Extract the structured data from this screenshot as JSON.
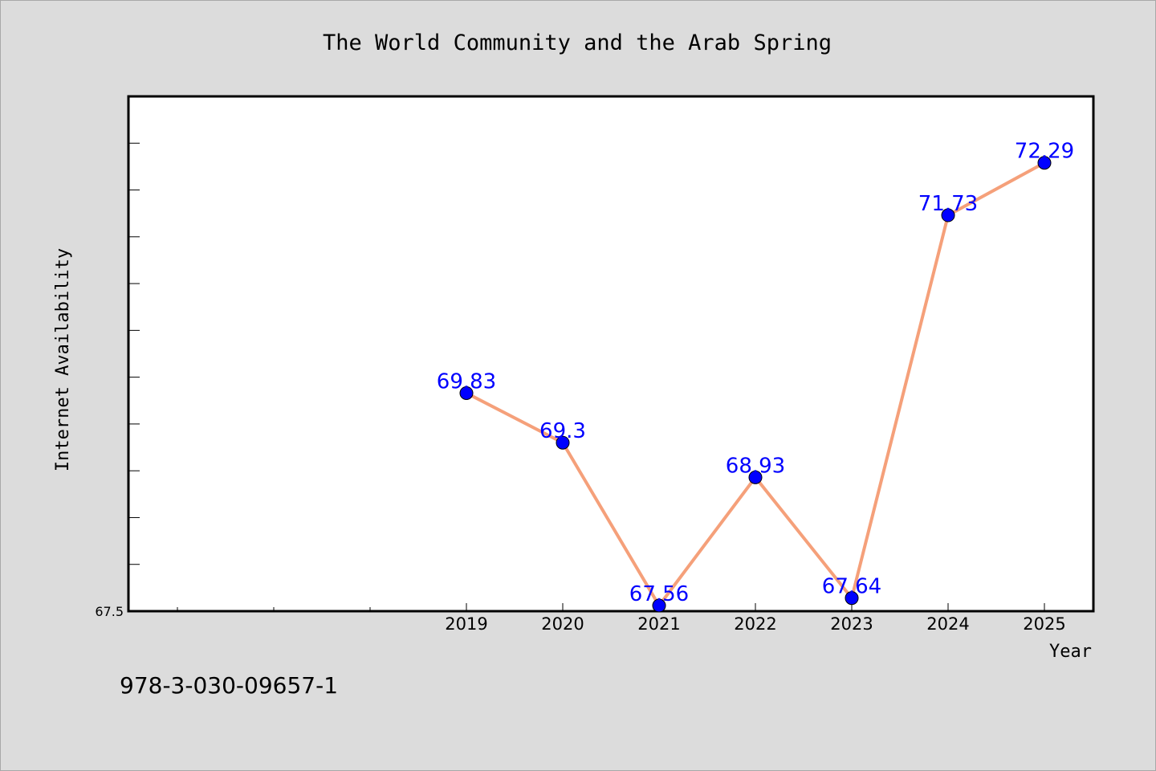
{
  "chart_data": {
    "type": "line",
    "title": "The World Community and the Arab Spring",
    "xlabel": "Year",
    "ylabel": "Internet Availability",
    "categories": [
      "2019",
      "2020",
      "2021",
      "2022",
      "2023",
      "2024",
      "2025"
    ],
    "values": [
      69.83,
      69.3,
      67.56,
      68.93,
      67.64,
      71.73,
      72.29
    ],
    "data_labels": [
      "69.83",
      "69.3",
      "67.56",
      "68.93",
      "67.64",
      "71.73",
      "72.29"
    ],
    "y_tick_label": "67.5",
    "ylim": [
      67.5,
      73.0
    ],
    "grid": false,
    "legend": "none",
    "colors": {
      "line": "#f5a07a",
      "marker": "#0000ff",
      "labels": "#0000ff",
      "plot_background": "#ffffff",
      "page_background": "#dcdcdc"
    }
  },
  "footer_note": "978-3-030-09657-1"
}
